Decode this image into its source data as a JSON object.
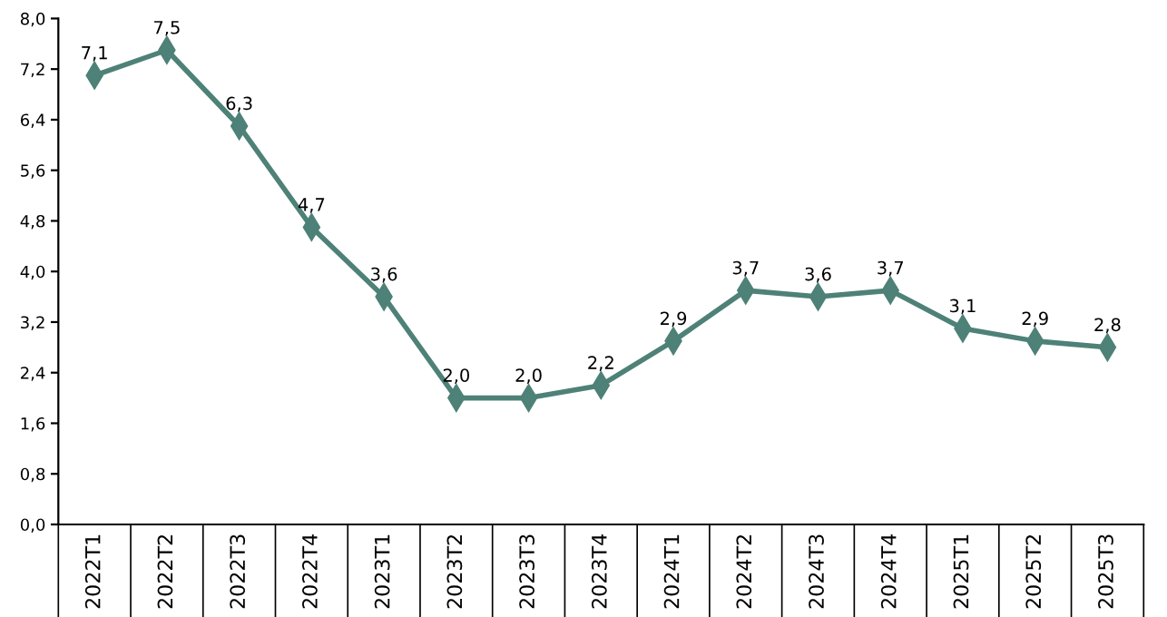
{
  "chart_data": {
    "type": "line",
    "categories": [
      "2022T1",
      "2022T2",
      "2022T3",
      "2022T4",
      "2023T1",
      "2023T2",
      "2023T3",
      "2023T4",
      "2024T1",
      "2024T2",
      "2024T3",
      "2024T4",
      "2025T1",
      "2025T2",
      "2025T3"
    ],
    "series": [
      {
        "color": "#4e8177",
        "values": [
          7.1,
          7.5,
          6.3,
          4.7,
          3.6,
          2.0,
          2.0,
          2.2,
          2.9,
          3.7,
          3.6,
          3.7,
          3.1,
          2.9,
          2.8
        ],
        "value_labels": [
          "7,1",
          "7,5",
          "6,3",
          "4,7",
          "3,6",
          "2,0",
          "2,0",
          "2,2",
          "2,9",
          "3,7",
          "3,6",
          "3,7",
          "3,1",
          "2,9",
          "2,8"
        ]
      }
    ],
    "ylim": [
      0,
      8
    ],
    "yticks": [
      {
        "value": 0,
        "label": "0,0"
      },
      {
        "value": 0.8,
        "label": "0,8"
      },
      {
        "value": 1.6,
        "label": "1,6"
      },
      {
        "value": 2.4,
        "label": "2,4"
      },
      {
        "value": 3.2,
        "label": "3,2"
      },
      {
        "value": 4.0,
        "label": "4,0"
      },
      {
        "value": 4.8,
        "label": "4,8"
      },
      {
        "value": 5.6,
        "label": "5,6"
      },
      {
        "value": 6.4,
        "label": "6,4"
      },
      {
        "value": 7.2,
        "label": "7,2"
      },
      {
        "value": 8.0,
        "label": "8,0"
      }
    ],
    "marker": "diamond",
    "line_style": "solid",
    "grid": false,
    "legend": false
  }
}
